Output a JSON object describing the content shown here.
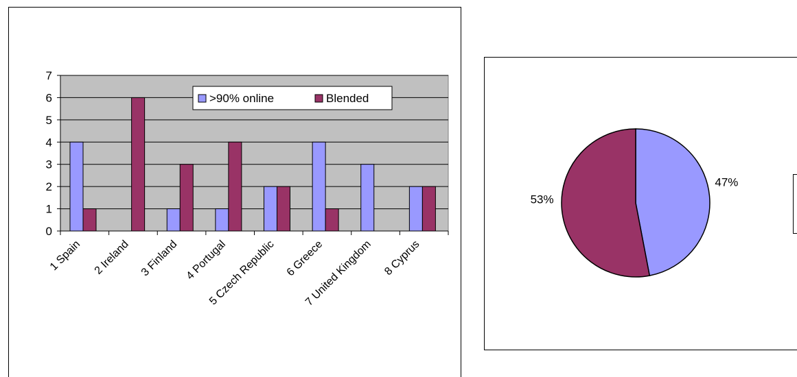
{
  "chart_data": [
    {
      "type": "bar",
      "categories": [
        "1 Spain",
        "2 Ireland",
        "3 Finland",
        "4 Portugal",
        "5 Czech Republic",
        "6 Greece",
        "7 United Kingdom",
        "8 Cyprus"
      ],
      "series": [
        {
          "name": ">90% online",
          "values": [
            4,
            0,
            1,
            1,
            2,
            4,
            3,
            2
          ],
          "color": "#9999ff"
        },
        {
          "name": "Blended",
          "values": [
            1,
            6,
            3,
            4,
            2,
            1,
            0,
            2
          ],
          "color": "#993366"
        }
      ],
      "ylim": [
        0,
        7
      ],
      "yticks": [
        "0",
        "1",
        "2",
        "3",
        "4",
        "5",
        "6",
        "7"
      ],
      "plot_background": "#c0c0c0",
      "grid": true,
      "legend_position": "top-right"
    },
    {
      "type": "pie",
      "slices": [
        {
          "label": "47%",
          "value": 47,
          "color": "#9999ff"
        },
        {
          "label": "53%",
          "value": 53,
          "color": "#993366"
        }
      ]
    }
  ]
}
